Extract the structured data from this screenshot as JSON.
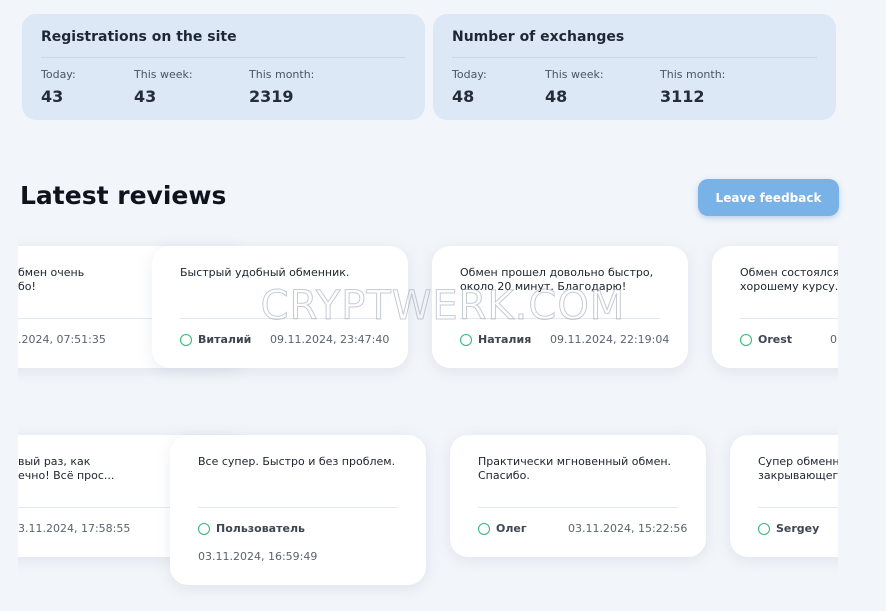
{
  "stats": [
    {
      "title": "Registrations on the site",
      "items": [
        {
          "label": "Today:",
          "value": "43"
        },
        {
          "label": "This week:",
          "value": "43"
        },
        {
          "label": "This month:",
          "value": "2319"
        }
      ]
    },
    {
      "title": "Number of exchanges",
      "items": [
        {
          "label": "Today:",
          "value": "48"
        },
        {
          "label": "This week:",
          "value": "48"
        },
        {
          "label": "This month:",
          "value": "3112"
        }
      ]
    }
  ],
  "reviews_title": "Latest reviews",
  "feedback_button": "Leave feedback",
  "watermark": "CRYPTWERK.COM",
  "reviews": [
    {
      "lines": [
        "бмен очень",
        "бо!"
      ],
      "date": ".2024, 07:51:35"
    },
    {
      "lines": [
        "Быстрый удобный обменник."
      ],
      "name": "Виталий",
      "date": "09.11.2024, 23:47:40"
    },
    {
      "lines": [
        "Обмен прошел довольно быстро,",
        "около 20 минут. Благодарю!"
      ],
      "name": "Наталия",
      "date": "09.11.2024, 22:19:04"
    },
    {
      "lines": [
        "Обмен состоялся",
        "хорошему курсу.."
      ],
      "name": "Orest",
      "date": "0"
    },
    {
      "lines": [
        "вый раз, как",
        "ечно! Всё прос..."
      ],
      "date": "3.11.2024, 17:58:55"
    },
    {
      "lines": [
        "Все супер. Быстро и без проблем."
      ],
      "name": "Пользователь",
      "date": "03.11.2024, 16:59:49"
    },
    {
      "lines": [
        "Практически мгновенный обмен.",
        "Спасибо."
      ],
      "name": "Олег",
      "date": "03.11.2024, 15:22:56"
    },
    {
      "lines": [
        "Супер обменн",
        "закрывающего"
      ],
      "name": "Sergey"
    }
  ]
}
